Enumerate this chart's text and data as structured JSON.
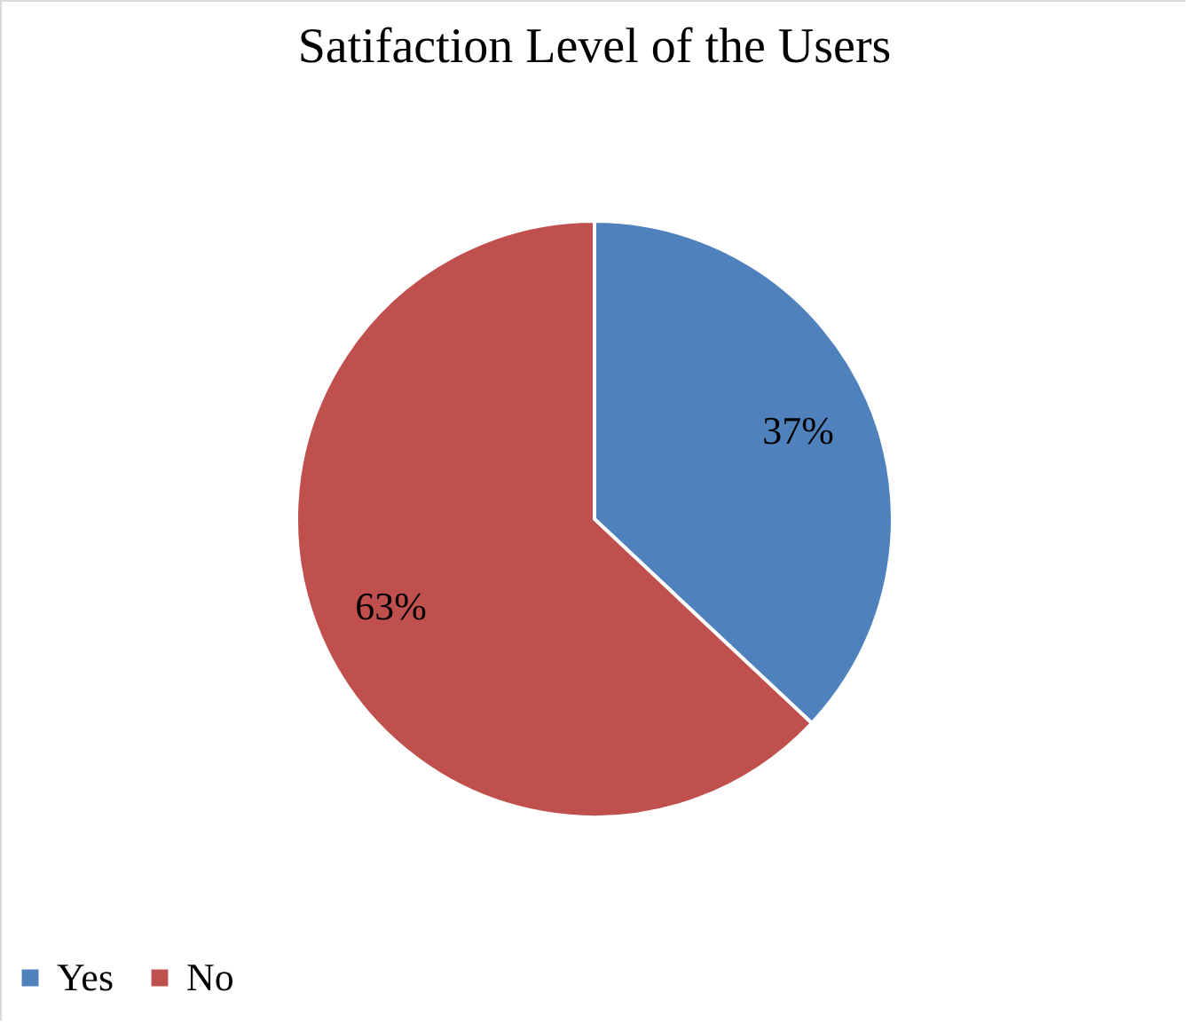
{
  "chart_data": {
    "type": "pie",
    "title": "Satifaction Level of the Users",
    "categories": [
      "Yes",
      "No"
    ],
    "values": [
      37,
      63
    ],
    "colors": [
      "#4f81bd",
      "#c0504d"
    ],
    "value_labels": [
      "37%",
      "63%"
    ],
    "legend": "bottom"
  }
}
